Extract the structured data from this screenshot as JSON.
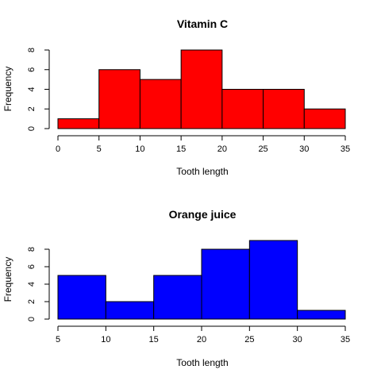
{
  "chart_data": [
    {
      "type": "bar",
      "title": "Vitamin C",
      "xlabel": "Tooth length",
      "ylabel": "Frequency",
      "bins": [
        [
          0,
          5
        ],
        [
          5,
          10
        ],
        [
          10,
          15
        ],
        [
          15,
          20
        ],
        [
          20,
          25
        ],
        [
          25,
          30
        ],
        [
          30,
          35
        ]
      ],
      "values": [
        1,
        6,
        5,
        8,
        4,
        4,
        2
      ],
      "xlim": [
        0,
        35
      ],
      "ylim": [
        0,
        8
      ],
      "xticks": [
        0,
        5,
        10,
        15,
        20,
        25,
        30,
        35
      ],
      "yticks": [
        0,
        2,
        4,
        6,
        8
      ],
      "color": "#ff0000"
    },
    {
      "type": "bar",
      "title": "Orange juice",
      "xlabel": "Tooth length",
      "ylabel": "Frequency",
      "bins": [
        [
          5,
          10
        ],
        [
          10,
          15
        ],
        [
          15,
          20
        ],
        [
          20,
          25
        ],
        [
          25,
          30
        ],
        [
          30,
          35
        ]
      ],
      "values": [
        5,
        2,
        5,
        8,
        9,
        1
      ],
      "xlim": [
        5,
        35
      ],
      "ylim": [
        0,
        8
      ],
      "xticks": [
        5,
        10,
        15,
        20,
        25,
        30,
        35
      ],
      "yticks": [
        0,
        2,
        4,
        6,
        8
      ],
      "color": "#0000ff"
    }
  ]
}
